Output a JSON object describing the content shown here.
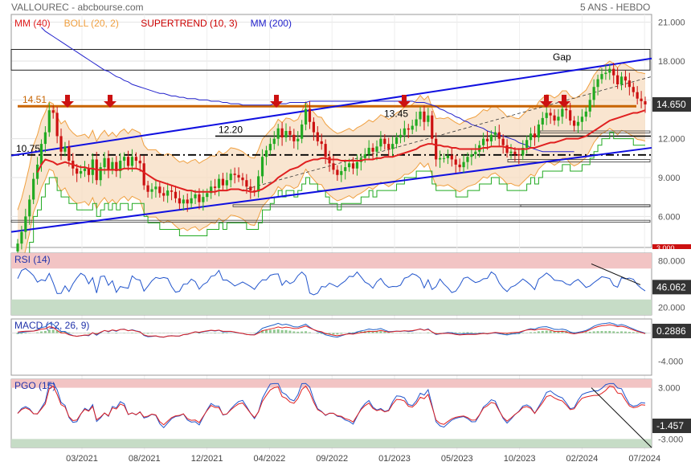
{
  "header": {
    "left": "VALLOUREC - abcbourse.com",
    "right": "5 ANS - HEBDO"
  },
  "colors": {
    "mm40": "#e02020",
    "boll": "#f0a040",
    "bollFill": "#f7dcc0",
    "supertrend": "#cc0000",
    "supertrendUp": "#22aa22",
    "mm200": "#2222cc",
    "trend": "#1010e0",
    "resistance": "#c86400",
    "arrow": "#cc1111",
    "rsi": "#2255cc",
    "macd": "#1e60c8",
    "signal": "#e02020",
    "hist": "#60b060",
    "overbought": "#f2c4c4",
    "oversold": "#c6dcc6",
    "up": "#22aa22",
    "down": "#cc1111"
  },
  "chart_data": [
    {
      "type": "candlestick",
      "panel": "price",
      "legend": [
        {
          "label": "MM (40)",
          "color": "#e02020"
        },
        {
          "label": "BOLL (20, 2)",
          "color": "#f0a040"
        },
        {
          "label": "SUPERTREND (10, 3)",
          "color": "#cc0000"
        },
        {
          "label": "MM (200)",
          "color": "#2222cc"
        }
      ],
      "x_ticks": [
        "03/2021",
        "08/2021",
        "12/2021",
        "04/2022",
        "09/2022",
        "01/2023",
        "05/2023",
        "10/2023",
        "02/2024",
        "07/2024"
      ],
      "y_ticks": [
        6.0,
        9.0,
        12.0,
        15.0,
        18.0,
        21.0
      ],
      "ylim": [
        3.6,
        21.6
      ],
      "last_value": "14.650",
      "clipped_tick": "3.000",
      "annotations": [
        {
          "text": "14.51",
          "value": 14.51
        },
        {
          "text": "12.20",
          "value": 12.2
        },
        {
          "text": "10.75",
          "value": 10.75
        },
        {
          "text": "13.45",
          "value": 13.45
        },
        {
          "text": "Gap",
          "value": 18.2
        }
      ],
      "close": [
        3.9,
        4.8,
        6.0,
        7.3,
        8.9,
        10.0,
        11.6,
        12.5,
        14.2,
        14.0,
        12.2,
        11.0,
        11.4,
        10.3,
        9.7,
        9.3,
        9.5,
        9.7,
        9.2,
        10.4,
        8.8,
        9.8,
        10.5,
        9.6,
        10.2,
        9.5,
        10.3,
        10.6,
        9.9,
        10.6,
        10.3,
        10.1,
        8.4,
        7.9,
        8.1,
        8.3,
        7.8,
        7.6,
        8.0,
        7.9,
        7.4,
        7.0,
        7.3,
        7.0,
        7.4,
        7.7,
        7.1,
        7.5,
        7.8,
        8.3,
        8.2,
        8.9,
        8.4,
        8.8,
        9.3,
        9.2,
        9.0,
        8.8,
        8.3,
        8.0,
        7.9,
        9.1,
        10.6,
        11.1,
        11.6,
        12.0,
        12.8,
        12.1,
        12.6,
        12.3,
        11.8,
        12.0,
        13.1,
        14.3,
        13.3,
        12.5,
        11.8,
        11.6,
        10.6,
        10.1,
        9.6,
        9.2,
        9.5,
        9.8,
        10.1,
        9.7,
        10.2,
        10.5,
        10.8,
        11.3,
        11.0,
        11.4,
        12.0,
        11.6,
        11.2,
        11.6,
        12.1,
        12.3,
        12.8,
        12.7,
        13.0,
        13.5,
        14.1,
        13.3,
        13.8,
        12.0,
        10.4,
        10.5,
        10.5,
        10.7,
        10.4,
        10.0,
        9.8,
        10.2,
        10.6,
        10.8,
        11.0,
        11.5,
        12.0,
        11.8,
        12.3,
        12.5,
        12.0,
        11.5,
        10.9,
        11.0,
        10.8,
        10.7,
        11.3,
        11.9,
        12.4,
        12.1,
        13.1,
        13.6,
        14.0,
        13.8,
        13.4,
        13.7,
        14.3,
        14.2,
        13.4,
        13.0,
        13.3,
        13.7,
        14.1,
        15.0,
        16.0,
        16.6,
        17.0,
        17.1,
        17.4,
        16.9,
        16.2,
        16.8,
        16.5,
        16.0,
        15.6,
        15.1,
        14.9,
        14.65
      ],
      "overlays": {
        "mm40": [
          null,
          null,
          null,
          null,
          null,
          9.4,
          10.0,
          10.4,
          10.3,
          10.2,
          10.0,
          10.1,
          10.2,
          10.1,
          10.0,
          9.9,
          9.8,
          9.8,
          9.7,
          9.7,
          9.6,
          9.6,
          9.6,
          9.6,
          9.6,
          9.6,
          9.6,
          9.7,
          9.7,
          9.7,
          9.7,
          9.6,
          9.4,
          9.2,
          9.0,
          8.8,
          8.7,
          8.6,
          8.5,
          8.4,
          8.3,
          8.2,
          8.1,
          8.0,
          8.0,
          7.9,
          7.9,
          7.9,
          7.9,
          7.9,
          7.9,
          8.0,
          8.0,
          8.0,
          8.1,
          8.1,
          8.1,
          8.0,
          8.0,
          7.9,
          7.9,
          8.0,
          8.1,
          8.3,
          8.5,
          8.7,
          9.0,
          9.2,
          9.4,
          9.6,
          9.7,
          9.8,
          10.0,
          10.2,
          10.3,
          10.4,
          10.4,
          10.5,
          10.5,
          10.4,
          10.4,
          10.4,
          10.3,
          10.3,
          10.3,
          10.3,
          10.3,
          10.3,
          10.4,
          10.4,
          10.4,
          10.5,
          10.5,
          10.6,
          10.6,
          10.6,
          10.7,
          10.8,
          10.9,
          11.0,
          11.1,
          11.2,
          11.4,
          11.5,
          11.6,
          11.6,
          11.5,
          11.5,
          11.4,
          11.4,
          11.3,
          11.3,
          11.2,
          11.2,
          11.2,
          11.2,
          11.2,
          11.2,
          11.3,
          11.3,
          11.4,
          11.4,
          11.4,
          11.4,
          11.3,
          11.3,
          11.2,
          11.2,
          11.2,
          11.2,
          11.3,
          11.3,
          11.4,
          11.5,
          11.6,
          11.7,
          11.7,
          11.8,
          11.9,
          12.0,
          12.0,
          12.0,
          12.0,
          12.1,
          12.2,
          12.4,
          12.6,
          12.8,
          13.0,
          13.2,
          13.4,
          13.5,
          13.6,
          13.7,
          13.8,
          13.9,
          14.0,
          14.0,
          14.1,
          14.2
        ],
        "mm200": [
          null,
          null,
          null,
          null,
          null,
          null,
          20.6,
          20.3,
          20.1,
          19.9,
          19.7,
          19.5,
          19.3,
          19.1,
          18.9,
          18.7,
          18.5,
          18.3,
          18.1,
          17.9,
          17.7,
          17.5,
          17.3,
          17.2,
          17.0,
          16.8,
          16.7,
          16.5,
          16.4,
          16.2,
          16.1,
          16.0,
          15.9,
          15.8,
          15.7,
          15.6,
          15.5,
          15.5,
          15.4,
          15.3,
          15.3,
          15.2,
          15.2,
          15.1,
          15.1,
          15.1,
          15.0,
          15.0,
          15.0,
          14.9,
          14.9,
          14.9,
          14.8,
          14.8,
          14.7,
          14.7,
          14.7,
          14.6,
          14.6,
          14.6,
          14.6,
          14.6,
          14.6,
          14.6,
          14.6,
          14.7,
          14.7,
          14.7,
          14.7,
          14.8,
          14.8,
          14.8,
          14.8,
          14.8,
          14.9,
          14.9,
          14.9,
          14.9,
          14.9,
          14.9,
          14.9,
          14.9,
          14.9,
          14.9,
          14.9,
          14.9,
          14.9,
          14.9,
          14.9,
          14.9,
          14.9,
          14.9,
          14.9,
          14.9,
          14.9,
          14.9,
          14.9,
          14.9,
          14.9,
          14.9,
          14.9,
          14.8,
          14.8,
          14.8,
          14.7,
          14.6,
          14.5,
          14.3,
          14.2,
          14.0,
          13.9,
          13.7,
          13.6,
          13.4,
          13.3,
          13.1,
          13.0,
          12.9,
          12.8,
          12.6,
          12.5,
          12.4,
          12.3,
          12.2,
          12.1,
          12.0,
          11.9,
          11.7,
          11.6,
          11.5,
          11.3,
          11.2,
          11.1,
          11.0,
          11.0,
          11.0,
          11.0,
          11.0,
          11.0,
          11.0,
          11.0,
          11.0,
          null,
          null,
          null,
          null,
          null,
          null,
          null,
          null,
          null,
          null,
          null,
          null,
          null,
          null,
          null,
          null,
          null,
          null,
          null,
          null,
          null,
          null
        ],
        "boll_width": 2.6
      }
    },
    {
      "type": "line",
      "panel": "RSI",
      "title": "RSI (14)",
      "y_ticks": [
        20.0,
        80.0
      ],
      "ylim": [
        10,
        90
      ],
      "last_value": "46.062",
      "bands": [
        30,
        70
      ]
    },
    {
      "type": "line",
      "panel": "MACD",
      "title": "MACD (12, 26, 9)",
      "y_ticks": [
        -4.0
      ],
      "ylim": [
        -6,
        2
      ],
      "last_value": "0.2886"
    },
    {
      "type": "line",
      "panel": "PGO",
      "title": "PGO (15)",
      "y_ticks": [
        -3.0,
        3.0
      ],
      "ylim": [
        -4,
        4
      ],
      "last_value": "-1.457"
    }
  ]
}
